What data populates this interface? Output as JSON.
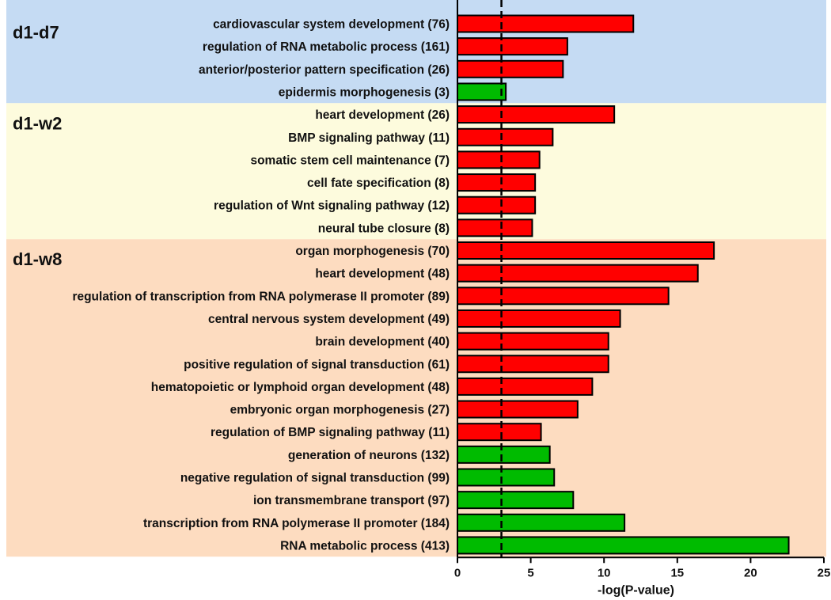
{
  "chart_data": {
    "type": "bar",
    "orientation": "horizontal",
    "xlabel": "-log(P-value)",
    "xlim": [
      0,
      25
    ],
    "xticks": [
      0,
      5,
      10,
      15,
      20,
      25
    ],
    "threshold": 3,
    "colors": {
      "up": "#ff0000",
      "down": "#00bb00",
      "bar_border": "#000000",
      "bg_d1_d7": "#c5dbf3",
      "bg_d1_w2": "#fdfbdd",
      "bg_d1_w8": "#fddcc0"
    },
    "groups": [
      {
        "label": "d1-d7",
        "bg": "bg_d1_d7",
        "items": [
          {
            "label": "cardiovascular system development (76)",
            "value": 12.0,
            "dir": "up"
          },
          {
            "label": "regulation of RNA metabolic process (161)",
            "value": 7.5,
            "dir": "up"
          },
          {
            "label": "anterior/posterior pattern specification (26)",
            "value": 7.2,
            "dir": "up"
          },
          {
            "label": "epidermis morphogenesis (3)",
            "value": 3.3,
            "dir": "down"
          }
        ]
      },
      {
        "label": "d1-w2",
        "bg": "bg_d1_w2",
        "items": [
          {
            "label": "heart development (26)",
            "value": 10.7,
            "dir": "up"
          },
          {
            "label": "BMP signaling pathway (11)",
            "value": 6.5,
            "dir": "up"
          },
          {
            "label": "somatic stem cell maintenance (7)",
            "value": 5.6,
            "dir": "up"
          },
          {
            "label": "cell fate specification (8)",
            "value": 5.3,
            "dir": "up"
          },
          {
            "label": "regulation of Wnt signaling pathway (12)",
            "value": 5.3,
            "dir": "up"
          },
          {
            "label": "neural tube closure (8)",
            "value": 5.1,
            "dir": "up"
          }
        ]
      },
      {
        "label": "d1-w8",
        "bg": "bg_d1_w8",
        "items": [
          {
            "label": "organ morphogenesis (70)",
            "value": 17.5,
            "dir": "up"
          },
          {
            "label": "heart development (48)",
            "value": 16.4,
            "dir": "up"
          },
          {
            "label": "regulation of transcription from RNA polymerase II promoter (89)",
            "value": 14.4,
            "dir": "up"
          },
          {
            "label": "central nervous system development (49)",
            "value": 11.1,
            "dir": "up"
          },
          {
            "label": "brain development (40)",
            "value": 10.3,
            "dir": "up"
          },
          {
            "label": "positive regulation of signal transduction (61)",
            "value": 10.3,
            "dir": "up"
          },
          {
            "label": "hematopoietic or lymphoid organ development (48)",
            "value": 9.2,
            "dir": "up"
          },
          {
            "label": "embryonic organ morphogenesis (27)",
            "value": 8.2,
            "dir": "up"
          },
          {
            "label": "regulation of BMP signaling pathway (11)",
            "value": 5.7,
            "dir": "up"
          },
          {
            "label": "generation of neurons (132)",
            "value": 6.3,
            "dir": "down"
          },
          {
            "label": "negative regulation of signal transduction (99)",
            "value": 6.6,
            "dir": "down"
          },
          {
            "label": "ion transmembrane transport (97)",
            "value": 7.9,
            "dir": "down"
          },
          {
            "label": "transcription from RNA polymerase II promoter (184)",
            "value": 11.4,
            "dir": "down"
          },
          {
            "label": "RNA metabolic process (413)",
            "value": 22.6,
            "dir": "down"
          }
        ]
      }
    ]
  }
}
